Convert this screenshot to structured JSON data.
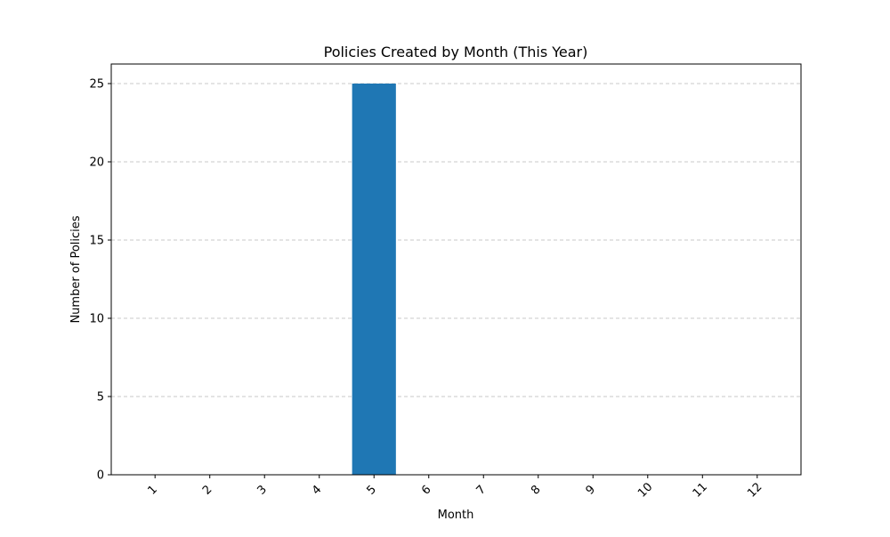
{
  "chart_data": {
    "type": "bar",
    "title": "Policies Created by Month (This Year)",
    "xlabel": "Month",
    "ylabel": "Number of Policies",
    "categories": [
      "1",
      "2",
      "3",
      "4",
      "5",
      "6",
      "7",
      "8",
      "9",
      "10",
      "11",
      "12"
    ],
    "values": [
      0,
      0,
      0,
      0,
      25,
      0,
      0,
      0,
      0,
      0,
      0,
      0
    ],
    "yticks": [
      0,
      5,
      10,
      15,
      20,
      25
    ],
    "ylim": [
      0,
      26.25
    ],
    "grid": "y-dashed",
    "bar_color": "#1f77b4",
    "xtick_rotation": -45
  }
}
